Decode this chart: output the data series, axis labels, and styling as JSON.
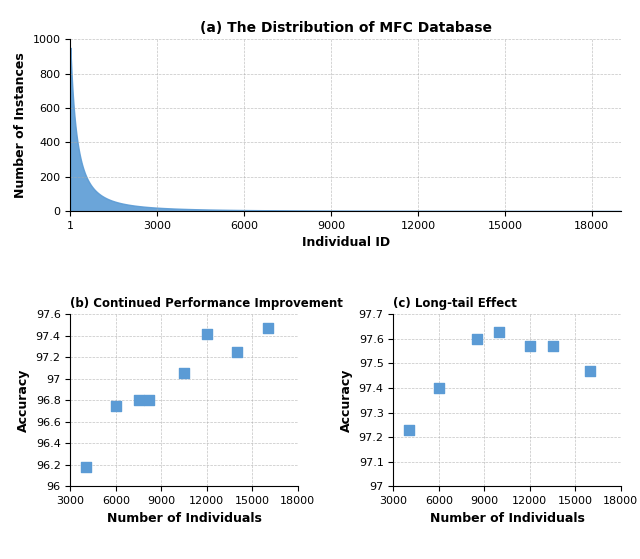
{
  "title_a": "(a) The Distribution of MFC Database",
  "title_b": "(b) Continued Performance Improvement",
  "title_c": "(c) Long-tail Effect",
  "xlabel_a": "Individual ID",
  "ylabel_a": "Number of Instances",
  "xlabel_b": "Number of Individuals",
  "ylabel_b": "Accuracy",
  "xlabel_c": "Number of Individuals",
  "ylabel_c": "Accuracy",
  "ylim_a": [
    0,
    1000
  ],
  "yticks_a": [
    0,
    200,
    400,
    600,
    800,
    1000
  ],
  "xlim_a": [
    1,
    19000
  ],
  "xticks_a": [
    1,
    3000,
    6000,
    9000,
    12000,
    15000,
    18000
  ],
  "xticklabels_a": [
    "1",
    "3000",
    "6000",
    "9000",
    "12000",
    "15000",
    "18000"
  ],
  "ylim_b": [
    96,
    97.6
  ],
  "yticks_b": [
    96.0,
    96.2,
    96.4,
    96.6,
    96.8,
    97.0,
    97.2,
    97.4,
    97.6
  ],
  "yticklabels_b": [
    "96",
    "96.2",
    "96.4",
    "96.6",
    "96.8",
    "97",
    "97.2",
    "97.4",
    "97.6"
  ],
  "xlim_b": [
    3000,
    18000
  ],
  "xticks_b": [
    3000,
    6000,
    9000,
    12000,
    15000,
    18000
  ],
  "ylim_c": [
    97.0,
    97.7
  ],
  "yticks_c": [
    97.0,
    97.1,
    97.2,
    97.3,
    97.4,
    97.5,
    97.6,
    97.7
  ],
  "yticklabels_c": [
    "97",
    "97.1",
    "97.2",
    "97.3",
    "97.4",
    "97.5",
    "97.6",
    "97.7"
  ],
  "xlim_c": [
    3000,
    18000
  ],
  "xticks_c": [
    3000,
    6000,
    9000,
    12000,
    15000,
    18000
  ],
  "scatter_b_x": [
    4000,
    6000,
    7500,
    8200,
    10500,
    12000,
    14000,
    16000
  ],
  "scatter_b_y": [
    96.18,
    96.75,
    96.8,
    96.8,
    97.05,
    97.42,
    97.25,
    97.47
  ],
  "scatter_c_x": [
    4000,
    6000,
    8500,
    10000,
    12000,
    13500,
    16000
  ],
  "scatter_c_y": [
    97.23,
    97.4,
    97.6,
    97.63,
    97.57,
    97.57,
    97.47
  ],
  "fill_color": "#5B9BD5",
  "scatter_color": "#5B9BD5",
  "grid_color": "#AAAAAA",
  "bg_color": "#FFFFFF"
}
